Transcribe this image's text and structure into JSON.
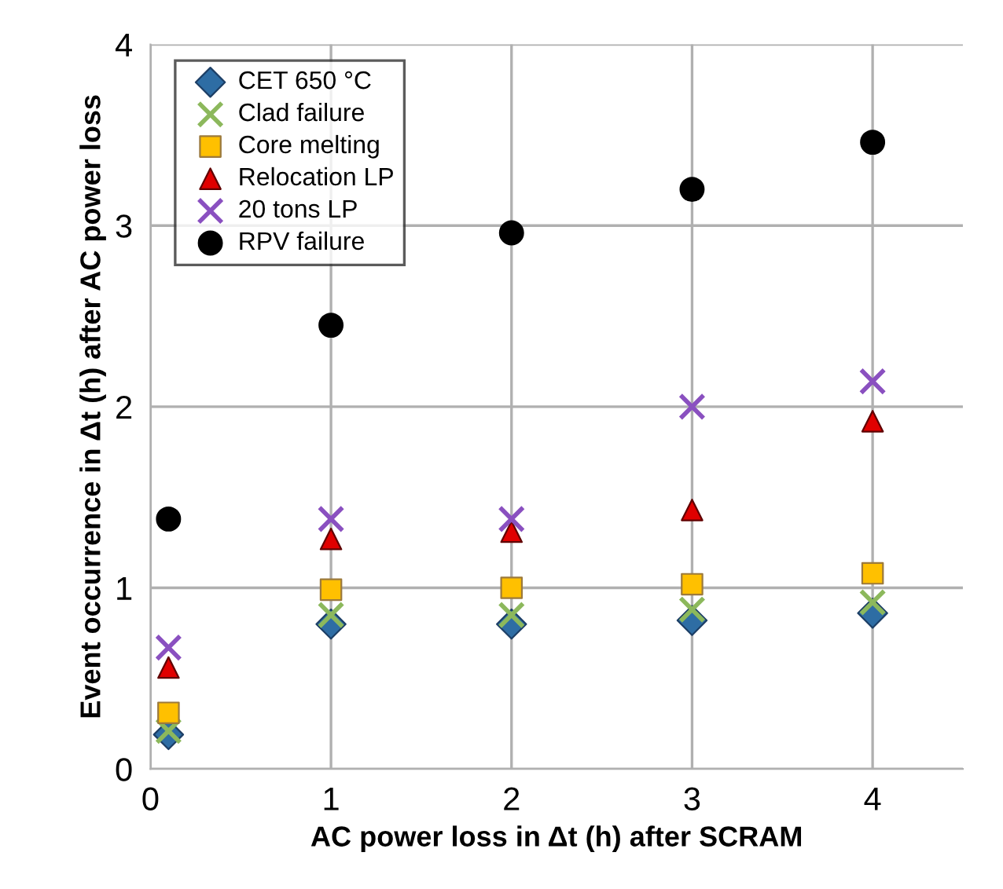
{
  "chart_data": {
    "type": "scatter",
    "xlabel": "AC power loss in Δt (h) after SCRAM",
    "ylabel": "Event occurrence in Δt (h) after AC power loss",
    "x": [
      0.1,
      1,
      2,
      3,
      4
    ],
    "series": [
      {
        "name": "CET 650 °C",
        "color": "#2e6da4",
        "marker": "diamond",
        "values": [
          0.19,
          0.8,
          0.8,
          0.82,
          0.86
        ]
      },
      {
        "name": "Clad failure",
        "color": "#8cb85c",
        "marker": "cross",
        "values": [
          0.21,
          0.85,
          0.85,
          0.88,
          0.92
        ]
      },
      {
        "name": "Core melting",
        "color": "#ffc000",
        "marker": "square",
        "values": [
          0.31,
          0.99,
          1.0,
          1.02,
          1.08
        ]
      },
      {
        "name": "Relocation LP",
        "color": "#e00000",
        "marker": "triangle",
        "values": [
          0.56,
          1.27,
          1.31,
          1.43,
          1.92
        ]
      },
      {
        "name": "20 tons LP",
        "color": "#8a50c0",
        "marker": "cross",
        "values": [
          0.67,
          1.38,
          1.38,
          2.0,
          2.14
        ]
      },
      {
        "name": "RPV failure",
        "color": "#000000",
        "marker": "circle",
        "values": [
          1.38,
          2.45,
          2.96,
          3.2,
          3.46
        ]
      }
    ],
    "xlim": [
      0,
      4.5
    ],
    "xticks": [
      0,
      1,
      2,
      3,
      4
    ],
    "ylim": [
      0,
      4
    ],
    "yticks": [
      0,
      1,
      2,
      3,
      4
    ],
    "grid": true,
    "legend": "top left"
  }
}
